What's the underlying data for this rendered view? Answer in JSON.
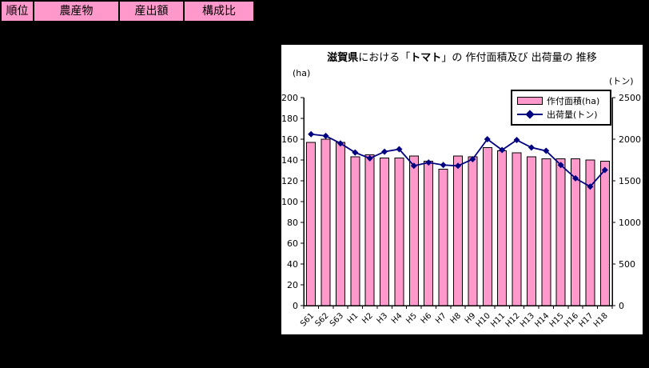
{
  "page": {
    "background": "#000000",
    "panel_background": "#FFFFFF"
  },
  "table": {
    "header_bg": "#FF99CC",
    "headers": [
      "順位",
      "農産物",
      "産出額",
      "構成比"
    ]
  },
  "chart": {
    "title_parts": {
      "p1": "滋賀県",
      "p2": "における「",
      "p3": "トマト",
      "p4": "」の 作付面積及び 出荷量の 推移"
    },
    "left_unit": "(ha)",
    "right_unit": "(トン)",
    "legend": [
      {
        "label": "作付面積(ha)",
        "color": "#FF99CC",
        "marker": "bar-swatch"
      },
      {
        "label": "出荷量(トン)",
        "color": "#000080",
        "marker": "line-diamond"
      }
    ]
  },
  "chart_data": {
    "type": "combo",
    "title": "滋賀県における「トマト」の 作付面積及び 出荷量の 推移",
    "categories": [
      "S61",
      "S62",
      "S63",
      "H1",
      "H2",
      "H3",
      "H4",
      "H5",
      "H6",
      "H7",
      "H8",
      "H9",
      "H10",
      "H11",
      "H12",
      "H13",
      "H14",
      "H15",
      "H16",
      "H17",
      "H18"
    ],
    "series": [
      {
        "name": "作付面積(ha)",
        "type": "bar",
        "axis": "left",
        "color": "#FF99CC",
        "border_color": "#000000",
        "values": [
          157,
          160,
          157,
          143,
          145,
          142,
          142,
          144,
          139,
          131,
          144,
          143,
          152,
          149,
          147,
          143,
          141,
          141,
          141,
          140,
          139
        ]
      },
      {
        "name": "出荷量(トン)",
        "type": "line",
        "axis": "right",
        "color": "#000080",
        "marker": "diamond",
        "values": [
          2060,
          2040,
          1950,
          1840,
          1770,
          1850,
          1880,
          1680,
          1720,
          1690,
          1680,
          1760,
          2000,
          1870,
          1990,
          1900,
          1860,
          1690,
          1530,
          1430,
          1630
        ]
      }
    ],
    "left_axis": {
      "label": "(ha)",
      "min": 0,
      "max": 200,
      "step": 20
    },
    "right_axis": {
      "label": "(トン)",
      "min": 0,
      "max": 2500,
      "step": 500
    },
    "grid": false,
    "legend_position": "top-right"
  }
}
